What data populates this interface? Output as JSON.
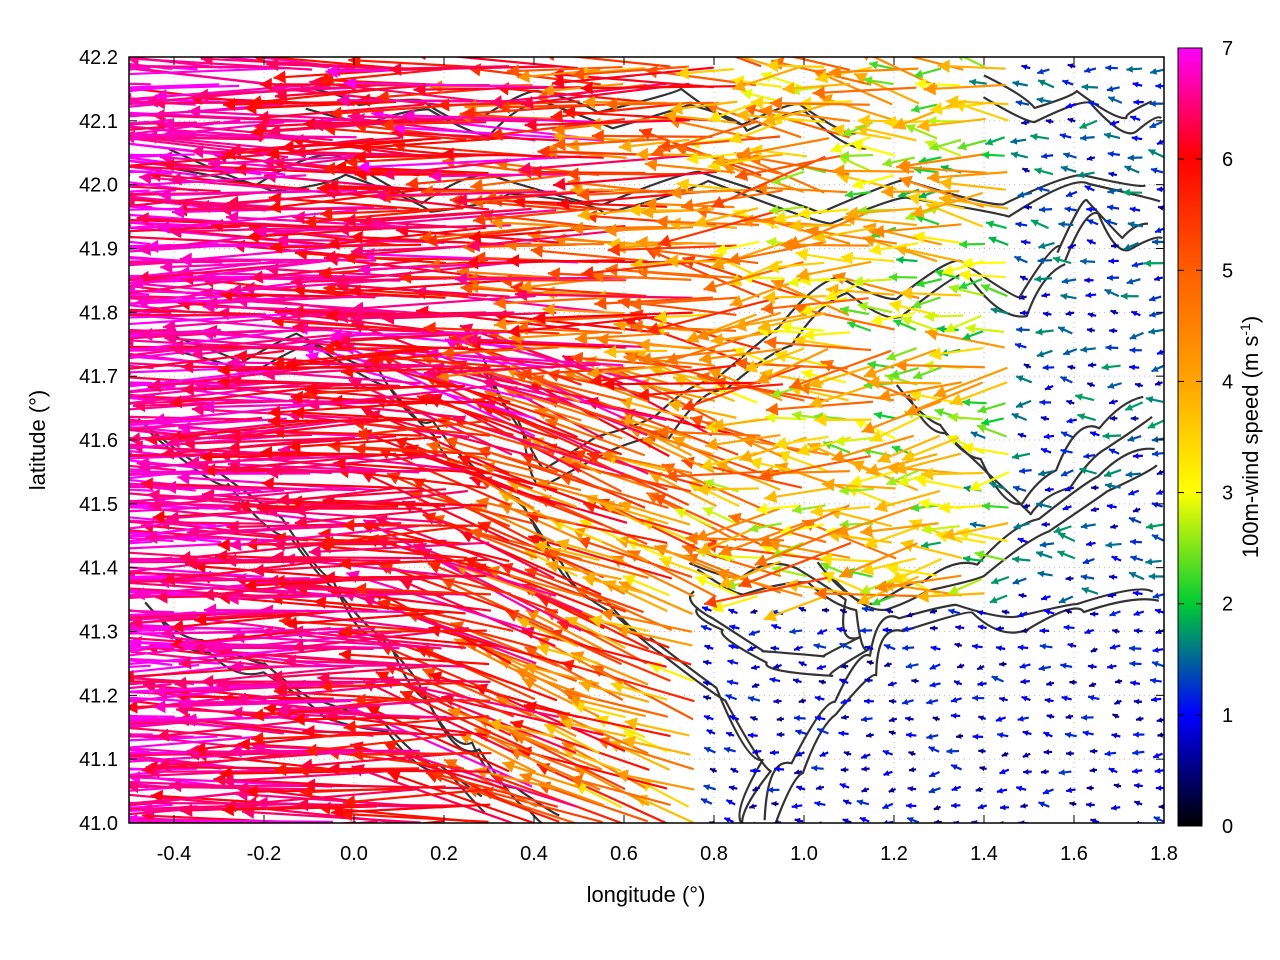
{
  "chart_data": {
    "type": "vector-field",
    "xlabel": "longitude (°)",
    "ylabel": "latitude (°)",
    "xlim": [
      -0.5,
      1.8
    ],
    "ylim": [
      41.0,
      42.2
    ],
    "x_ticks": [
      "-0.4",
      "-0.2",
      "0.0",
      "0.2",
      "0.4",
      "0.6",
      "0.8",
      "1.0",
      "1.2",
      "1.4",
      "1.6",
      "1.8"
    ],
    "y_ticks": [
      "41.0",
      "41.1",
      "41.2",
      "41.3",
      "41.4",
      "41.5",
      "41.6",
      "41.7",
      "41.8",
      "41.9",
      "42.0",
      "42.1",
      "42.2"
    ],
    "colorbar": {
      "label": "100m-wind speed (m s",
      "label_sup": "-1",
      "label_end": ")",
      "range": [
        0,
        7
      ],
      "ticks": [
        "0",
        "1",
        "2",
        "3",
        "4",
        "5",
        "6",
        "7"
      ],
      "colors": [
        "#000000",
        "#0000ff",
        "#00cc33",
        "#ffff00",
        "#ffa500",
        "#ff6000",
        "#ff0000",
        "#ff00ff"
      ]
    },
    "grid": "dotted",
    "wind_direction": "mostly from east (arrows point west)",
    "speed_regions": [
      {
        "region": "west of 0.4° lon",
        "speed_ms": 7
      },
      {
        "region": "0.4°–1.0° lon, north of 41.6°",
        "speed_ms": 5.5
      },
      {
        "region": "1.0°–1.5° lon",
        "speed_ms": 3.5
      },
      {
        "region": "east of 1.5° lon",
        "speed_ms": 1
      }
    ],
    "contours": "dark grey terrain contour lines"
  }
}
